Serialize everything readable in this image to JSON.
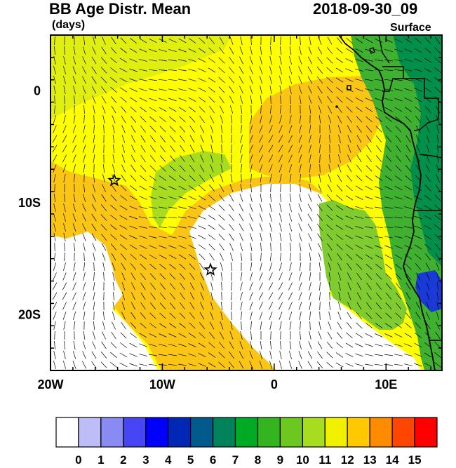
{
  "header": {
    "title": "BB Age Distr. Mean",
    "units": "(days)",
    "datetime": "2018-09-30_09",
    "level": "Surface"
  },
  "map": {
    "lon_range": [
      -20,
      15
    ],
    "lat_range": [
      -25,
      5
    ],
    "x_ticks": [
      {
        "value": -20,
        "label": "20W"
      },
      {
        "value": -10,
        "label": "10W"
      },
      {
        "value": 0,
        "label": "0"
      },
      {
        "value": 10,
        "label": "10E"
      }
    ],
    "y_ticks": [
      {
        "value": 0,
        "label": "0"
      },
      {
        "value": -10,
        "label": "10S"
      },
      {
        "value": -20,
        "label": "20S"
      }
    ],
    "stars": [
      {
        "lon": -14.3,
        "lat": -8.0
      },
      {
        "lon": -5.7,
        "lat": -16.0
      }
    ]
  },
  "colorbar": {
    "labels": [
      "0",
      "1",
      "2",
      "3",
      "4",
      "5",
      "6",
      "7",
      "8",
      "9",
      "10",
      "11",
      "12",
      "13",
      "14",
      "15"
    ],
    "colors": [
      "#ffffff",
      "#bcbcf6",
      "#8a8af3",
      "#4646f5",
      "#0000ff",
      "#0028b4",
      "#005a8c",
      "#00825a",
      "#00aa24",
      "#34b41e",
      "#6cc81e",
      "#a8dc1e",
      "#f0f000",
      "#ffc800",
      "#ff8c00",
      "#ff4600",
      "#ff0000"
    ]
  },
  "palette": {
    "yellow": "#ffff00",
    "light_yellow": "#e0ee10",
    "green_yellow": "#a8dc1e",
    "light_green": "#80cc30",
    "green": "#40b030",
    "dark_green": "#00904a",
    "orange": "#fbc516",
    "dark_orange": "#f7a21a",
    "blue": "#1a3ad8",
    "white": "#ffffff"
  }
}
